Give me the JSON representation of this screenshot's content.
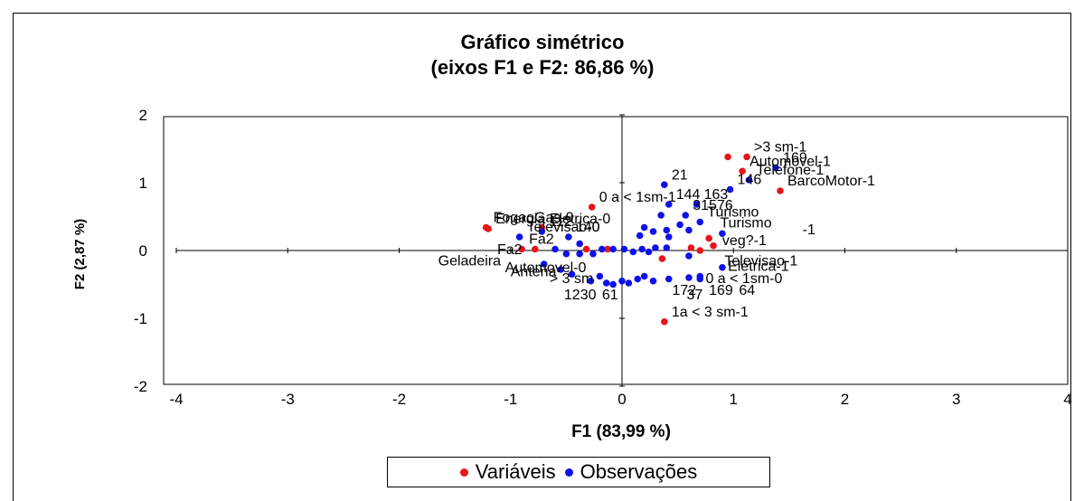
{
  "chart_data": {
    "type": "scatter",
    "title": "Gráfico simétrico",
    "subtitle": "(eixos F1 e F2: 86,86 %)",
    "xlabel": "F1 (83,99 %)",
    "ylabel": "F2 (2,87 %)",
    "xlim": [
      -4,
      4
    ],
    "ylim": [
      -2,
      2
    ],
    "xticks": [
      -4,
      -3,
      -2,
      -1,
      0,
      1,
      2,
      3,
      4
    ],
    "yticks": [
      -2,
      -1,
      0,
      1,
      2
    ],
    "grid": false,
    "legend_position": "bottom",
    "series": [
      {
        "name": "Variáveis",
        "color": "#e8141b",
        "points": [
          {
            "x": 0.95,
            "y": 1.38,
            "label": ""
          },
          {
            "x": 1.12,
            "y": 1.38,
            "label": ">3 sm-1"
          },
          {
            "x": 1.08,
            "y": 1.17,
            "label": "Automovel-1"
          },
          {
            "x": 1.42,
            "y": 0.88,
            "label": "BarcoMotor-1"
          },
          {
            "x": -0.27,
            "y": 0.64,
            "label": "0 a < 1sm-1"
          },
          {
            "x": -1.22,
            "y": 0.34,
            "label": "FogaoGas-0"
          },
          {
            "x": -1.2,
            "y": 0.32,
            "label": "Energia Eletrica-0"
          },
          {
            "x": -0.72,
            "y": 0.34,
            "label": ""
          },
          {
            "x": -0.9,
            "y": 0.02,
            "label": "Fa2"
          },
          {
            "x": -0.78,
            "y": 0.02,
            "label": ""
          },
          {
            "x": -0.32,
            "y": 0.02,
            "label": ""
          },
          {
            "x": -0.13,
            "y": 0.02,
            "label": ""
          },
          {
            "x": 0.36,
            "y": -0.12,
            "label": ""
          },
          {
            "x": 0.82,
            "y": 0.07,
            "label": ""
          },
          {
            "x": 0.7,
            "y": 0.0,
            "label": ""
          },
          {
            "x": 0.62,
            "y": 0.04,
            "label": ""
          },
          {
            "x": 0.78,
            "y": 0.18,
            "label": ""
          },
          {
            "x": 0.38,
            "y": -1.05,
            "label": "1a < 3 sm-1"
          }
        ]
      },
      {
        "name": "Observações",
        "color": "#1010e8",
        "points": [
          {
            "x": 0.38,
            "y": 0.97,
            "label": "21"
          },
          {
            "x": 1.38,
            "y": 1.22,
            "label": "169"
          },
          {
            "x": 1.14,
            "y": 1.04,
            "label": "Telefone-1"
          },
          {
            "x": 0.97,
            "y": 0.9,
            "label": "146"
          },
          {
            "x": 0.67,
            "y": 0.68,
            "label": "163"
          },
          {
            "x": 0.42,
            "y": 0.68,
            "label": "144"
          },
          {
            "x": 0.57,
            "y": 0.52,
            "label": "31576"
          },
          {
            "x": 0.35,
            "y": 0.52,
            "label": ""
          },
          {
            "x": 0.7,
            "y": 0.42,
            "label": "Turismo"
          },
          {
            "x": 0.52,
            "y": 0.38,
            "label": ""
          },
          {
            "x": 0.2,
            "y": 0.34,
            "label": ""
          },
          {
            "x": 0.28,
            "y": 0.28,
            "label": ""
          },
          {
            "x": 0.4,
            "y": 0.3,
            "label": ""
          },
          {
            "x": 0.6,
            "y": 0.3,
            "label": ""
          },
          {
            "x": 0.9,
            "y": 0.25,
            "label": ""
          },
          {
            "x": 0.16,
            "y": 0.22,
            "label": ""
          },
          {
            "x": 0.42,
            "y": 0.2,
            "label": ""
          },
          {
            "x": -0.92,
            "y": 0.2,
            "label": "Televisao-0"
          },
          {
            "x": -0.48,
            "y": 0.2,
            "label": "140"
          },
          {
            "x": -0.72,
            "y": 0.28,
            "label": "112"
          },
          {
            "x": -0.38,
            "y": 0.1,
            "label": ""
          },
          {
            "x": -0.6,
            "y": 0.02,
            "label": ""
          },
          {
            "x": -0.5,
            "y": -0.05,
            "label": ""
          },
          {
            "x": -0.38,
            "y": -0.05,
            "label": ""
          },
          {
            "x": -0.26,
            "y": -0.05,
            "label": ""
          },
          {
            "x": -0.18,
            "y": 0.02,
            "label": ""
          },
          {
            "x": -0.08,
            "y": 0.02,
            "label": ""
          },
          {
            "x": 0.02,
            "y": 0.02,
            "label": ""
          },
          {
            "x": 0.1,
            "y": -0.02,
            "label": ""
          },
          {
            "x": 0.18,
            "y": 0.02,
            "label": ""
          },
          {
            "x": 0.24,
            "y": -0.02,
            "label": ""
          },
          {
            "x": 0.3,
            "y": 0.04,
            "label": ""
          },
          {
            "x": 0.6,
            "y": -0.08,
            "label": ""
          },
          {
            "x": 0.4,
            "y": 0.04,
            "label": ""
          },
          {
            "x": -0.7,
            "y": -0.2,
            "label": ""
          },
          {
            "x": -0.55,
            "y": -0.28,
            "label": ""
          },
          {
            "x": -0.45,
            "y": -0.35,
            "label": ""
          },
          {
            "x": -0.28,
            "y": -0.45,
            "label": ""
          },
          {
            "x": -0.2,
            "y": -0.38,
            "label": ""
          },
          {
            "x": -0.14,
            "y": -0.48,
            "label": ""
          },
          {
            "x": -0.08,
            "y": -0.5,
            "label": ""
          },
          {
            "x": 0.0,
            "y": -0.45,
            "label": ""
          },
          {
            "x": 0.06,
            "y": -0.48,
            "label": ""
          },
          {
            "x": 0.14,
            "y": -0.42,
            "label": ""
          },
          {
            "x": 0.2,
            "y": -0.38,
            "label": ""
          },
          {
            "x": 0.28,
            "y": -0.45,
            "label": ""
          },
          {
            "x": 0.42,
            "y": -0.42,
            "label": ""
          },
          {
            "x": 0.6,
            "y": -0.4,
            "label": ""
          },
          {
            "x": 0.7,
            "y": -0.38,
            "label": ""
          },
          {
            "x": 0.9,
            "y": -0.25,
            "label": ""
          },
          {
            "x": 0.7,
            "y": -0.42,
            "label": ""
          }
        ]
      }
    ],
    "annotations": [
      {
        "text": "Fa2",
        "x": -1.12,
        "y": -0.05
      },
      {
        "text": "Turismo",
        "x": 0.88,
        "y": 0.34
      },
      {
        "text": "Televisao-1",
        "x": 0.92,
        "y": -0.22
      },
      {
        "text": "Geladeira",
        "x": -1.65,
        "y": -0.22
      },
      {
        "text": "Automovel-0",
        "x": -1.05,
        "y": -0.32
      },
      {
        "text": "Antena",
        "x": -1.0,
        "y": -0.38
      },
      {
        "text": "Eletrica-1",
        "x": 0.95,
        "y": -0.3
      },
      {
        "text": "> 3 sm",
        "x": -0.65,
        "y": -0.48
      },
      {
        "text": "0 a < 1sm-0",
        "x": 0.75,
        "y": -0.48
      },
      {
        "text": "veg?-1",
        "x": 0.9,
        "y": 0.08
      },
      {
        "text": "-1",
        "x": 1.62,
        "y": 0.24
      },
      {
        "text": "1230",
        "x": -0.52,
        "y": -0.72
      },
      {
        "text": "61",
        "x": -0.18,
        "y": -0.72
      },
      {
        "text": "172",
        "x": 0.45,
        "y": -0.65
      },
      {
        "text": "37",
        "x": 0.58,
        "y": -0.72
      },
      {
        "text": "169",
        "x": 0.78,
        "y": -0.65
      },
      {
        "text": "64",
        "x": 1.05,
        "y": -0.65
      }
    ]
  }
}
